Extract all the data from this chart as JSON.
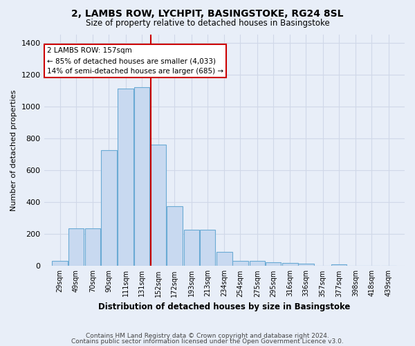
{
  "title": "2, LAMBS ROW, LYCHPIT, BASINGSTOKE, RG24 8SL",
  "subtitle": "Size of property relative to detached houses in Basingstoke",
  "xlabel": "Distribution of detached houses by size in Basingstoke",
  "ylabel": "Number of detached properties",
  "footnote1": "Contains HM Land Registry data © Crown copyright and database right 2024.",
  "footnote2": "Contains public sector information licensed under the Open Government Licence v3.0.",
  "bar_color": "#c8d9f0",
  "bar_edge_color": "#6aaad4",
  "bg_color": "#e8eef8",
  "grid_color": "#d0d8e8",
  "annotation_line1": "2 LAMBS ROW: 157sqm",
  "annotation_line2": "← 85% of detached houses are smaller (4,033)",
  "annotation_line3": "14% of semi-detached houses are larger (685) →",
  "annotation_box_color": "#cc0000",
  "vline_color": "#cc0000",
  "categories": [
    "29sqm",
    "49sqm",
    "70sqm",
    "90sqm",
    "111sqm",
    "131sqm",
    "152sqm",
    "172sqm",
    "193sqm",
    "213sqm",
    "234sqm",
    "254sqm",
    "275sqm",
    "295sqm",
    "316sqm",
    "336sqm",
    "357sqm",
    "377sqm",
    "398sqm",
    "418sqm",
    "439sqm"
  ],
  "bin_left": [
    29,
    49,
    70,
    90,
    111,
    131,
    152,
    172,
    193,
    213,
    234,
    254,
    275,
    295,
    316,
    336,
    357,
    377,
    398,
    418,
    439
  ],
  "bin_width": 20,
  "values": [
    30,
    235,
    235,
    725,
    1110,
    1120,
    760,
    375,
    225,
    225,
    90,
    30,
    30,
    25,
    20,
    15,
    0,
    10,
    0,
    0,
    0
  ],
  "vline_x_index": 6,
  "ylim": [
    0,
    1450
  ],
  "yticks": [
    0,
    200,
    400,
    600,
    800,
    1000,
    1200,
    1400
  ]
}
